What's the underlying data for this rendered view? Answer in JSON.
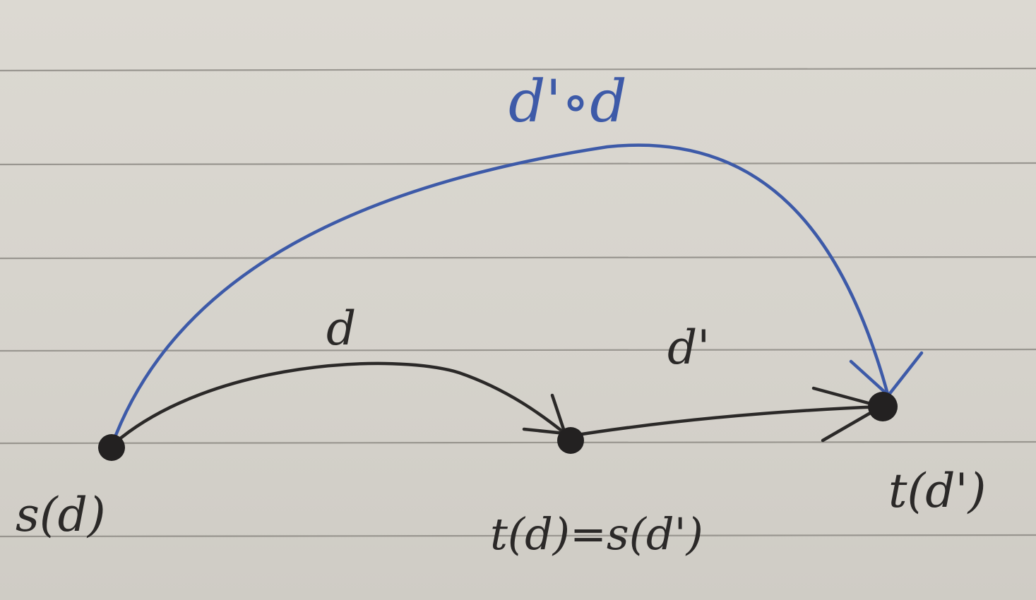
{
  "diagram": {
    "nodes": [
      {
        "id": "a",
        "label": "s(d)"
      },
      {
        "id": "b",
        "label": "t(d)=s(d')"
      },
      {
        "id": "c",
        "label": "t(d')"
      }
    ],
    "edges": [
      {
        "from": "a",
        "to": "b",
        "label": "d",
        "color": "#2b2928"
      },
      {
        "from": "b",
        "to": "c",
        "label": "d'",
        "color": "#2b2928"
      },
      {
        "from": "a",
        "to": "c",
        "label": "d'∘d",
        "color": "#3d5aa8"
      }
    ]
  }
}
